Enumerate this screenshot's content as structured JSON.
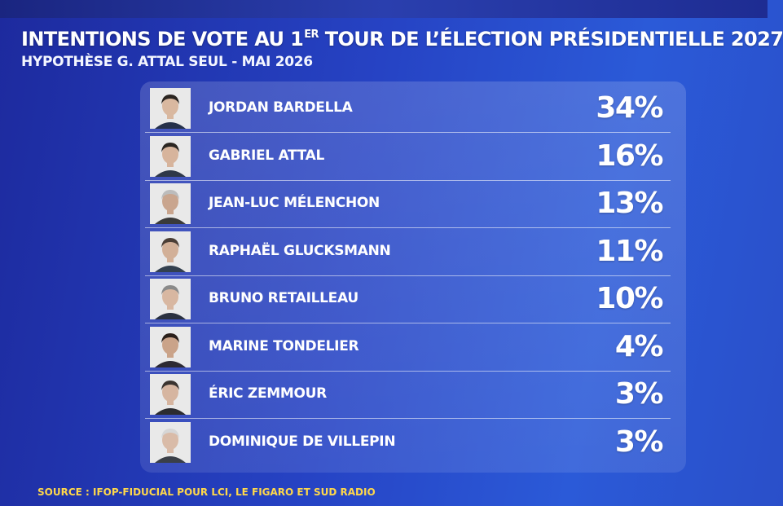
{
  "header": {
    "title_part1": "INTENTIONS DE VOTE AU 1",
    "title_sup": "ER",
    "title_part2": " TOUR DE L’ÉLECTION PRÉSIDENTIELLE 2027",
    "subtitle": "HYPOTHÈSE G. ATTAL SEUL - MAI 2026"
  },
  "chart_data": {
    "type": "table",
    "value_unit": "%",
    "categories": [
      "JORDAN BARDELLA",
      "GABRIEL ATTAL",
      "JEAN-LUC MÉLENCHON",
      "RAPHAËL GLUCKSMANN",
      "BRUNO RETAILLEAU",
      "MARINE TONDELIER",
      "ÉRIC ZEMMOUR",
      "DOMINIQUE DE VILLEPIN"
    ],
    "values": [
      34,
      16,
      13,
      11,
      10,
      4,
      3,
      3
    ],
    "labels": [
      "34%",
      "16%",
      "13%",
      "11%",
      "10%",
      "4%",
      "3%",
      "3%"
    ]
  },
  "footer": {
    "source": "SOURCE : IFOP-FIDUCIAL POUR LCI, LE FIGARO ET SUD RADIO"
  },
  "colors": {
    "background": "#2643c4",
    "text": "#ffffff",
    "source_text": "#ffd84a"
  }
}
